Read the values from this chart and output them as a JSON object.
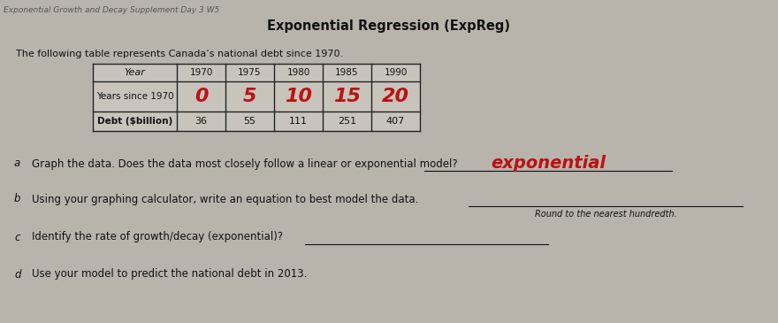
{
  "header_line1": "Exponential Growth and Decay Supplement Day 3 W5",
  "title": "Exponential Regression (ExpReg)",
  "intro_text": "The following table represents Canada’s national debt since 1970.",
  "table": {
    "col_headers": [
      "Year",
      "1970",
      "1975",
      "1980",
      "1985",
      "1990"
    ],
    "row1_label": "Years since 1970",
    "row1_handwritten": [
      "0",
      "5",
      "10",
      "15",
      "20"
    ],
    "row2_label": "Debt ($billion)",
    "row2_values": [
      "36",
      "55",
      "111",
      "251",
      "407"
    ]
  },
  "questions": [
    {
      "letter": "a",
      "text": "Graph the data. Does the data most closely follow a linear or exponential model?"
    },
    {
      "letter": "b",
      "text": "Using your graphing calculator, write an equation to best model the data.",
      "subtext": "Round to the nearest hundredth."
    },
    {
      "letter": "c",
      "text": "Identify the rate of growth/decay (exponential)?"
    },
    {
      "letter": "d",
      "text": "Use your model to predict the national debt in 2013."
    }
  ],
  "bg_color": "#b8b4ac",
  "paper_color": "#d4d0c8",
  "table_border_color": "#222222",
  "text_color": "#111111",
  "handwritten_color": "#bb1111",
  "handwritten_answer": "exponential"
}
